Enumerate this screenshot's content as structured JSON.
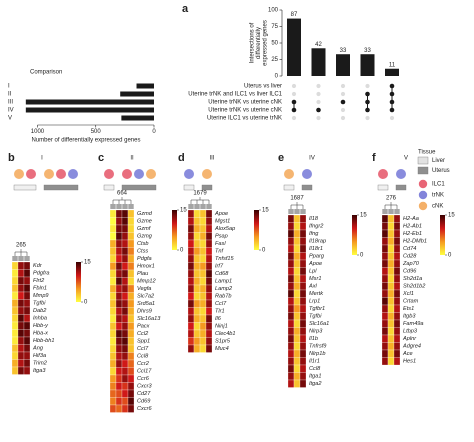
{
  "panel_a": {
    "label": "a",
    "title": "Comparison",
    "x_label": "Number of differentially expressed genes",
    "xlim": [
      0,
      1150
    ],
    "xticks": [
      0,
      500,
      1000
    ],
    "comparisons": [
      {
        "numeral": "I",
        "name": "Uterus vs liver",
        "value": 150
      },
      {
        "numeral": "II",
        "name": "Uterine trNK and ILC1 vs liver ILC1",
        "value": 290
      },
      {
        "numeral": "III",
        "name": "Uterine trNK vs uterine cNK",
        "value": 1100
      },
      {
        "numeral": "IV",
        "name": "Uterine trNK vs uterine cNK",
        "value": 1100
      },
      {
        "numeral": "V",
        "name": "Uterine ILC1 vs uterine trNK",
        "value": 280
      }
    ],
    "y_label": "Intersections of differentially expressed genes",
    "ylim": [
      0,
      100
    ],
    "yticks": [
      0,
      25,
      50,
      75,
      100
    ],
    "intersections": [
      {
        "value": 87,
        "sets": [
          2,
          3
        ]
      },
      {
        "value": 42,
        "sets": [
          3
        ]
      },
      {
        "value": 33,
        "sets": [
          2
        ]
      },
      {
        "value": 33,
        "sets": [
          1,
          2,
          3
        ]
      },
      {
        "value": 11,
        "sets": [
          0,
          1,
          2,
          3
        ]
      }
    ]
  },
  "legend": {
    "title": "Tissue",
    "tissues": [
      "Liver",
      "Uterus"
    ],
    "cells": [
      "ILC1",
      "trNK",
      "cNK"
    ]
  },
  "colorbar": {
    "ticks": [
      0,
      15
    ]
  },
  "panels": [
    {
      "label": "b",
      "comparison": "I",
      "count": 265,
      "genes": [
        "Kdr",
        "Pdgfra",
        "Flrt2",
        "Fbln1",
        "Mmp9",
        "Tgfbi",
        "Dab2",
        "Inhba",
        "Hbb-y",
        "Hba-x",
        "Hbb-bh1",
        "Ang",
        "Hif3a",
        "Trim2",
        "Itga3"
      ],
      "cells": [
        [
          2,
          12,
          13
        ],
        [
          1,
          11,
          14
        ],
        [
          2,
          13,
          12
        ],
        [
          3,
          12,
          14
        ],
        [
          1,
          10,
          13
        ],
        [
          4,
          13,
          12
        ],
        [
          3,
          12,
          13
        ],
        [
          2,
          14,
          11
        ],
        [
          1,
          13,
          14
        ],
        [
          1,
          14,
          13
        ],
        [
          1,
          12,
          14
        ],
        [
          3,
          11,
          13
        ],
        [
          2,
          12,
          12
        ],
        [
          4,
          11,
          13
        ],
        [
          3,
          13,
          12
        ]
      ]
    },
    {
      "label": "c",
      "comparison": "II",
      "count": 664,
      "genes": [
        "Gzmd",
        "Gzme",
        "Gzmf",
        "Gzmg",
        "Ctsb",
        "Ctss",
        "Pdgfa",
        "Hmox1",
        "Plau",
        "Mmp12",
        "Vegfa",
        "Slc7a2",
        "Srd5a1",
        "Dhrs9",
        "Slc16a13",
        "Pacx",
        "Ccl2",
        "Spp1",
        "Ccl7",
        "Ccl8",
        "Ccr2",
        "Ccl17",
        "Ccr6",
        "Cxcr3",
        "Cd27",
        "Cd69",
        "Cxcr6"
      ],
      "cells": [
        [
          1,
          13,
          14,
          3
        ],
        [
          0,
          12,
          14,
          2
        ],
        [
          1,
          13,
          13,
          2
        ],
        [
          0,
          14,
          12,
          3
        ],
        [
          4,
          12,
          11,
          5
        ],
        [
          3,
          11,
          13,
          6
        ],
        [
          2,
          10,
          12,
          4
        ],
        [
          5,
          13,
          10,
          6
        ],
        [
          2,
          12,
          13,
          3
        ],
        [
          1,
          14,
          11,
          2
        ],
        [
          4,
          11,
          12,
          6
        ],
        [
          2,
          12,
          10,
          4
        ],
        [
          3,
          13,
          12,
          5
        ],
        [
          2,
          11,
          13,
          4
        ],
        [
          1,
          12,
          11,
          3
        ],
        [
          3,
          10,
          12,
          5
        ],
        [
          2,
          14,
          13,
          4
        ],
        [
          1,
          13,
          14,
          3
        ],
        [
          2,
          12,
          13,
          3
        ],
        [
          3,
          11,
          12,
          6
        ],
        [
          4,
          12,
          10,
          7
        ],
        [
          2,
          10,
          11,
          8
        ],
        [
          5,
          9,
          12,
          10
        ],
        [
          6,
          10,
          9,
          12
        ],
        [
          7,
          8,
          10,
          13
        ],
        [
          6,
          9,
          8,
          14
        ],
        [
          8,
          7,
          9,
          13
        ]
      ]
    },
    {
      "label": "d",
      "comparison": "III",
      "count": 1679,
      "genes": [
        "Apoe",
        "Mgst1",
        "Alox5ap",
        "Psap",
        "Fasl",
        "Tnf",
        "Tnfsf15",
        "Irf7",
        "Cd68",
        "Lamp1",
        "Lamp2",
        "Rab7b",
        "Ccl7",
        "Tlr1",
        "Il6",
        "Ninj1",
        "Clec4b1",
        "S1pr5",
        "Muc4"
      ],
      "cells": [
        [
          12,
          2,
          3,
          13
        ],
        [
          11,
          3,
          2,
          12
        ],
        [
          13,
          4,
          3,
          11
        ],
        [
          12,
          2,
          4,
          13
        ],
        [
          10,
          3,
          2,
          12
        ],
        [
          11,
          5,
          3,
          10
        ],
        [
          12,
          3,
          2,
          11
        ],
        [
          13,
          4,
          5,
          12
        ],
        [
          12,
          3,
          3,
          14
        ],
        [
          11,
          4,
          2,
          13
        ],
        [
          12,
          3,
          4,
          12
        ],
        [
          10,
          2,
          3,
          11
        ],
        [
          13,
          5,
          4,
          12
        ],
        [
          11,
          3,
          2,
          10
        ],
        [
          12,
          4,
          3,
          13
        ],
        [
          10,
          2,
          5,
          12
        ],
        [
          11,
          3,
          4,
          11
        ],
        [
          9,
          5,
          3,
          12
        ],
        [
          12,
          4,
          2,
          13
        ]
      ]
    },
    {
      "label": "e",
      "comparison": "IV",
      "count": 1687,
      "genes": [
        "Il18",
        "Ifngr2",
        "Ifng",
        "Il18rap",
        "Il18r1",
        "Pparg",
        "Apoe",
        "Lpl",
        "Msr1",
        "Axl",
        "Mertk",
        "Lrp1",
        "Tgfbr1",
        "Tgfbi",
        "Slc16a1",
        "Nlrp3",
        "Il1b",
        "Tnfrsf9",
        "Nlrp1b",
        "Il1r1",
        "Ccl8",
        "Itga1",
        "Itga2"
      ],
      "cells": [
        [
          13,
          3,
          12
        ],
        [
          12,
          2,
          11
        ],
        [
          14,
          4,
          13
        ],
        [
          12,
          3,
          12
        ],
        [
          11,
          2,
          13
        ],
        [
          13,
          4,
          11
        ],
        [
          12,
          3,
          12
        ],
        [
          11,
          2,
          13
        ],
        [
          13,
          3,
          11
        ],
        [
          12,
          4,
          12
        ],
        [
          14,
          2,
          13
        ],
        [
          11,
          3,
          12
        ],
        [
          12,
          5,
          11
        ],
        [
          13,
          3,
          12
        ],
        [
          11,
          2,
          13
        ],
        [
          12,
          4,
          12
        ],
        [
          13,
          3,
          11
        ],
        [
          12,
          2,
          12
        ],
        [
          11,
          4,
          13
        ],
        [
          12,
          3,
          12
        ],
        [
          13,
          2,
          11
        ],
        [
          12,
          4,
          12
        ],
        [
          11,
          3,
          13
        ]
      ]
    },
    {
      "label": "f",
      "comparison": "V",
      "count": 276,
      "genes": [
        "H2-Aa",
        "H2-Ab1",
        "H2-Eb1",
        "H2-DMb1",
        "Cd74",
        "Cd28",
        "Zap70",
        "Cd96",
        "Sh2d1a",
        "Sh2d1b2",
        "Xcl1",
        "Crtam",
        "Ets1",
        "Itgb3",
        "Fam49a",
        "Ltbp3",
        "Aplnr",
        "Adgre4",
        "Ace",
        "Hes1"
      ],
      "cells": [
        [
          14,
          3,
          12
        ],
        [
          13,
          2,
          13
        ],
        [
          14,
          3,
          12
        ],
        [
          12,
          4,
          13
        ],
        [
          13,
          2,
          12
        ],
        [
          12,
          3,
          11
        ],
        [
          13,
          4,
          12
        ],
        [
          11,
          3,
          13
        ],
        [
          12,
          2,
          12
        ],
        [
          13,
          3,
          11
        ],
        [
          12,
          4,
          13
        ],
        [
          14,
          3,
          12
        ],
        [
          12,
          2,
          11
        ],
        [
          11,
          4,
          12
        ],
        [
          12,
          3,
          13
        ],
        [
          13,
          2,
          12
        ],
        [
          11,
          3,
          11
        ],
        [
          12,
          4,
          12
        ],
        [
          13,
          3,
          13
        ],
        [
          12,
          2,
          11
        ]
      ]
    }
  ]
}
